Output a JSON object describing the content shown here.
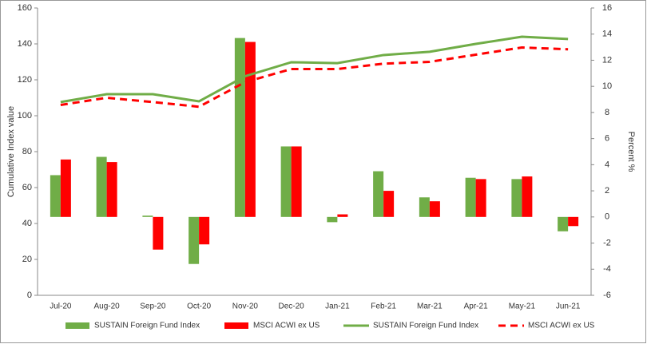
{
  "chart_data": {
    "type": "combo",
    "y_label": "Cumulative Index value",
    "y2_label": "Percent %",
    "categories": [
      "Jul-20",
      "Aug-20",
      "Sep-20",
      "Oct-20",
      "Nov-20",
      "Dec-20",
      "Jan-21",
      "Feb-21",
      "Mar-21",
      "Apr-21",
      "May-21",
      "Jun-21"
    ],
    "ylim": [
      0,
      160
    ],
    "yticks": [
      0,
      20,
      40,
      60,
      80,
      100,
      120,
      140,
      160
    ],
    "y2lim": [
      -6,
      16
    ],
    "y2ticks": [
      -6,
      -4,
      -2,
      0,
      2,
      4,
      6,
      8,
      10,
      12,
      14,
      16
    ],
    "legend": "bottom",
    "series": [
      {
        "name": "SUSTAIN Foreign Fund Index",
        "type": "bar",
        "axis": "y2",
        "color": "#70ad47",
        "values": [
          3.2,
          4.6,
          0.1,
          -3.6,
          13.7,
          5.4,
          -0.4,
          3.5,
          1.5,
          3.0,
          2.9,
          -1.1
        ]
      },
      {
        "name": "MSCI ACWI ex US",
        "type": "bar",
        "axis": "y2",
        "color": "#ff0000",
        "values": [
          4.4,
          4.2,
          -2.5,
          -2.1,
          13.4,
          5.4,
          0.2,
          2.0,
          1.2,
          2.9,
          3.1,
          -0.7
        ]
      },
      {
        "name": "SUSTAIN Foreign Fund Index",
        "type": "line",
        "axis": "y",
        "color": "#70ad47",
        "line_style": "solid",
        "values": [
          107.6,
          112,
          112,
          108,
          122,
          129.8,
          129.3,
          133.8,
          135.6,
          140,
          144,
          142.7
        ]
      },
      {
        "name": "MSCI ACWI ex US",
        "type": "line",
        "axis": "y",
        "color": "#ff0000",
        "line_style": "dashed",
        "values": [
          106,
          110,
          107.6,
          105,
          118.7,
          126,
          126,
          129,
          130,
          134,
          138,
          137
        ]
      }
    ]
  }
}
